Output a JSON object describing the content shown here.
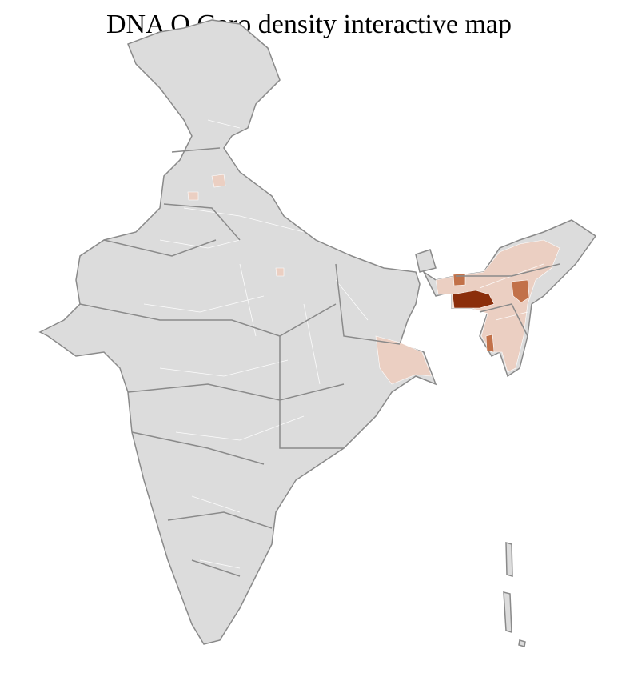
{
  "title": "DNA O Garo density interactive map",
  "colors": {
    "base": "#dcdcdc",
    "state_border": "#8a8a8a",
    "district_border": "#ffffff",
    "low": "#ebcfc2",
    "medium": "#c27149",
    "high": "#8b2e0b"
  }
}
